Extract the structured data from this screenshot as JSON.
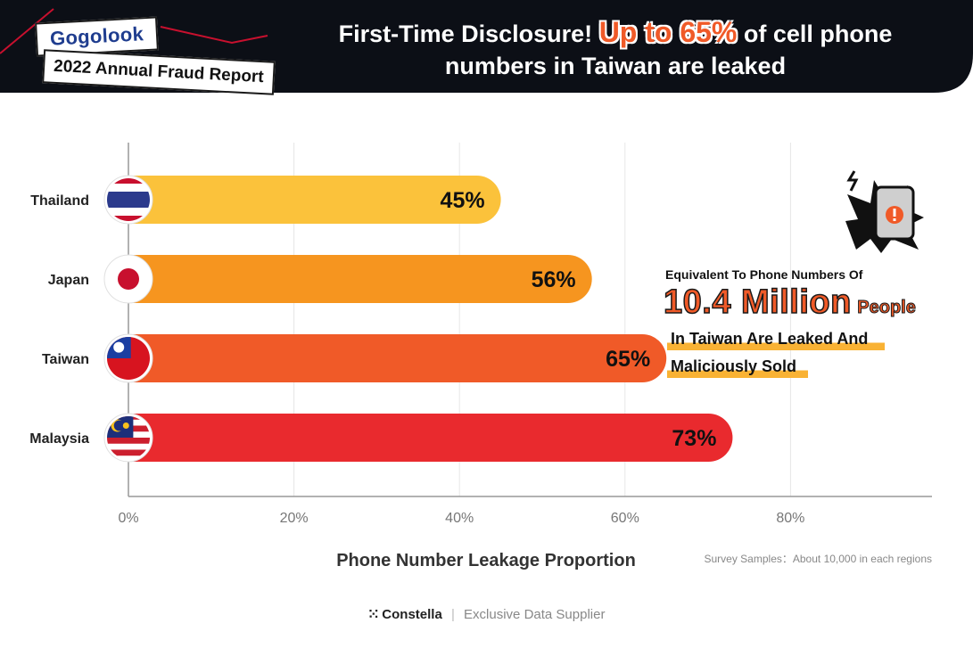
{
  "banner": {
    "brand": "Gogolook",
    "report": "2022 Annual Fraud Report",
    "headline_pre": "First-Time Disclosure!",
    "headline_highlight": "Up to 65%",
    "headline_post1": "of cell phone",
    "headline_post2": "numbers in Taiwan are leaked"
  },
  "chart_data": {
    "type": "bar",
    "orientation": "horizontal",
    "categories": [
      "Thailand",
      "Japan",
      "Taiwan",
      "Malaysia"
    ],
    "values": [
      45,
      56,
      65,
      73
    ],
    "value_labels": [
      "45%",
      "56%",
      "65%",
      "73%"
    ],
    "bar_colors": [
      "#fbc23b",
      "#f6951f",
      "#f05a28",
      "#e92a2e"
    ],
    "xlim": [
      0,
      100
    ],
    "xticks": [
      0,
      20,
      40,
      60,
      80
    ],
    "xtick_labels": [
      "0%",
      "20%",
      "40%",
      "60%",
      "80%"
    ],
    "xlabel": "Phone Number Leakage Proportion",
    "grid": true,
    "note": "Survey Samples：About 10,000 in each regions"
  },
  "callout": {
    "intro": "Equivalent To Phone Numbers Of",
    "number": "10.4 Million",
    "unit": "People",
    "line1": "In Taiwan Are Leaked And",
    "line2": "Maliciously Sold",
    "icon": "phone-warning-icon"
  },
  "footer": {
    "logo": "Constella",
    "sub": "Exclusive Data Supplier"
  }
}
